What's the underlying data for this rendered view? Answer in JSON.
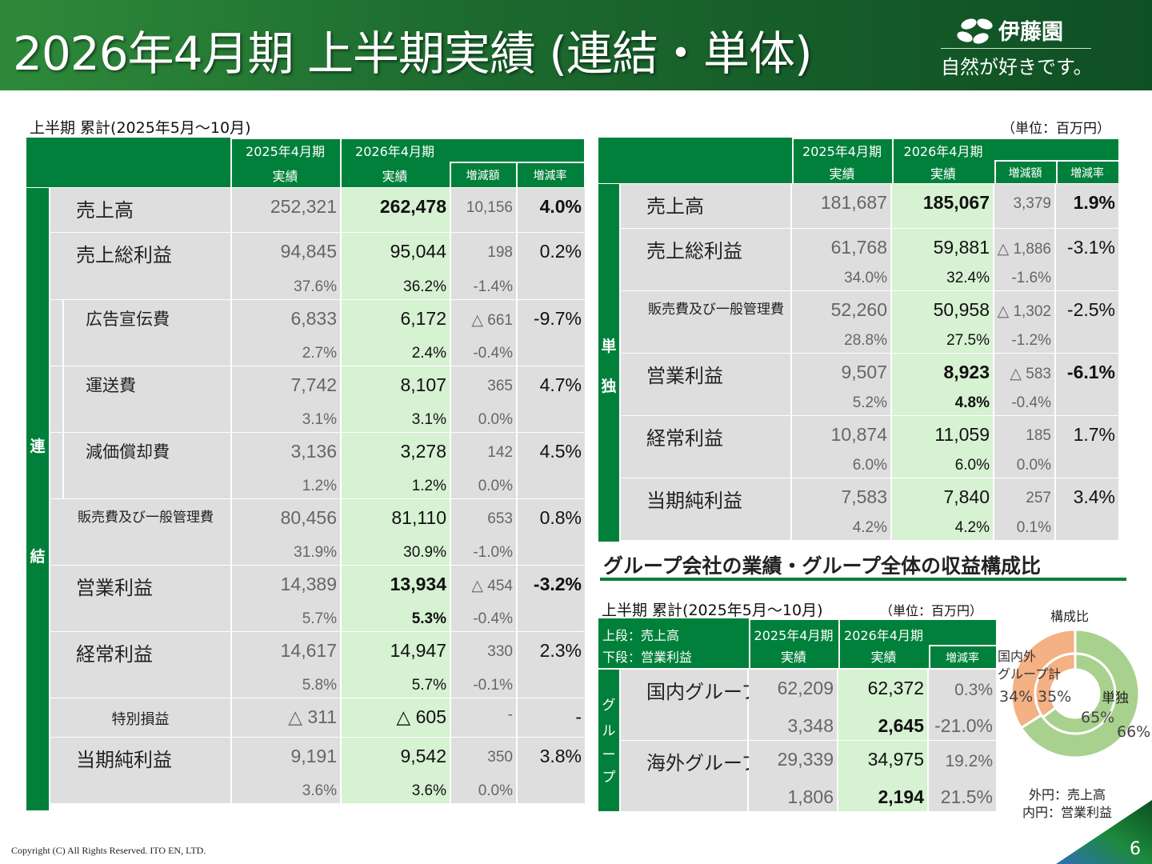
{
  "header": {
    "title": "2026年4月期 上半期実績 (連結・単体)",
    "logo_name": "伊藤園",
    "slogan": "自然が好きです。"
  },
  "unit_label": "（単位：百万円）",
  "consolidated": {
    "caption": "上半期 累計(2025年5月～10月)",
    "col_prev": "2025年4月期",
    "col_curr": "2026年4月期",
    "actual": "実績",
    "diff": "増減額",
    "rate": "増減率",
    "side_chars": [
      "連",
      "結"
    ],
    "rows": [
      {
        "label": "売上高",
        "prev": "252,321",
        "curr": "262,478",
        "diff": "10,156",
        "rate": "4.0%",
        "bold": true,
        "size": "big"
      },
      {
        "label": "売上総利益",
        "prev": "94,845",
        "curr": "95,044",
        "diff": "198",
        "rate": "0.2%",
        "pprev": "37.6%",
        "pcurr": "36.2%",
        "pdiff": "-1.4%",
        "size": "big"
      },
      {
        "label": "広告宣伝費",
        "prev": "6,833",
        "curr": "6,172",
        "diff": "△ 661",
        "rate": "-9.7%",
        "pprev": "2.7%",
        "pcurr": "2.4%",
        "pdiff": "-0.4%",
        "size": "sub"
      },
      {
        "label": "運送費",
        "prev": "7,742",
        "curr": "8,107",
        "diff": "365",
        "rate": "4.7%",
        "pprev": "3.1%",
        "pcurr": "3.1%",
        "pdiff": "0.0%",
        "size": "sub"
      },
      {
        "label": "減価償却費",
        "prev": "3,136",
        "curr": "3,278",
        "diff": "142",
        "rate": "4.5%",
        "pprev": "1.2%",
        "pcurr": "1.2%",
        "pdiff": "0.0%",
        "size": "sub"
      },
      {
        "label": "販売費及び一般管理費",
        "prev": "80,456",
        "curr": "81,110",
        "diff": "653",
        "rate": "0.8%",
        "pprev": "31.9%",
        "pcurr": "30.9%",
        "pdiff": "-1.0%",
        "size": "small"
      },
      {
        "label": "営業利益",
        "prev": "14,389",
        "curr": "13,934",
        "diff": "△ 454",
        "rate": "-3.2%",
        "pprev": "5.7%",
        "pcurr": "5.3%",
        "pdiff": "-0.4%",
        "bold": true,
        "size": "big"
      },
      {
        "label": "経常利益",
        "prev": "14,617",
        "curr": "14,947",
        "diff": "330",
        "rate": "2.3%",
        "pprev": "5.8%",
        "pcurr": "5.7%",
        "pdiff": "-0.1%",
        "size": "big"
      },
      {
        "label": "特別損益",
        "prev": "△ 311",
        "curr": "△ 605",
        "diff": "-",
        "rate": "-",
        "size": "center"
      },
      {
        "label": "当期純利益",
        "prev": "9,191",
        "curr": "9,542",
        "diff": "350",
        "rate": "3.8%",
        "pprev": "3.6%",
        "pcurr": "3.6%",
        "pdiff": "0.0%",
        "size": "big"
      }
    ]
  },
  "standalone": {
    "col_prev": "2025年4月期",
    "col_curr": "2026年4月期",
    "actual": "実績",
    "diff": "増減額",
    "rate": "増減率",
    "side_chars": [
      "単",
      "独"
    ],
    "rows": [
      {
        "label": "売上高",
        "prev": "181,687",
        "curr": "185,067",
        "diff": "3,379",
        "rate": "1.9%",
        "bold": true,
        "size": "big"
      },
      {
        "label": "売上総利益",
        "prev": "61,768",
        "curr": "59,881",
        "diff": "△ 1,886",
        "rate": "-3.1%",
        "pprev": "34.0%",
        "pcurr": "32.4%",
        "pdiff": "-1.6%",
        "size": "big"
      },
      {
        "label": "販売費及び一般管理費",
        "prev": "52,260",
        "curr": "50,958",
        "diff": "△ 1,302",
        "rate": "-2.5%",
        "pprev": "28.8%",
        "pcurr": "27.5%",
        "pdiff": "-1.2%",
        "size": "small"
      },
      {
        "label": "営業利益",
        "prev": "9,507",
        "curr": "8,923",
        "diff": "△ 583",
        "rate": "-6.1%",
        "pprev": "5.2%",
        "pcurr": "4.8%",
        "pdiff": "-0.4%",
        "bold": true,
        "size": "big"
      },
      {
        "label": "経常利益",
        "prev": "10,874",
        "curr": "11,059",
        "diff": "185",
        "rate": "1.7%",
        "pprev": "6.0%",
        "pcurr": "6.0%",
        "pdiff": "0.0%",
        "size": "big"
      },
      {
        "label": "当期純利益",
        "prev": "7,583",
        "curr": "7,840",
        "diff": "257",
        "rate": "3.4%",
        "pprev": "4.2%",
        "pcurr": "4.2%",
        "pdiff": "0.1%",
        "size": "big"
      }
    ]
  },
  "group": {
    "section_title": "グループ会社の業績・グループ全体の収益構成比",
    "caption": "上半期 累計(2025年5月～10月)",
    "unit_label": "（単位：百万円）",
    "legend_top": "上段：売上高",
    "legend_bottom": "下段：営業利益",
    "col_prev": "2025年4月期",
    "col_curr": "2026年4月期",
    "actual": "実績",
    "rate": "増減率",
    "side_chars": [
      "グ",
      "ル",
      "ー",
      "プ"
    ],
    "rows": [
      {
        "label": "国内グループ",
        "prev": "62,209",
        "curr": "62,372",
        "rate": "0.3%",
        "pprev": "3,348",
        "pcurr": "2,645",
        "prate": "-21.0%"
      },
      {
        "label": "海外グループ",
        "prev": "29,339",
        "curr": "34,975",
        "rate": "19.2%",
        "pprev": "1,806",
        "pcurr": "2,194",
        "prate": "21.5%"
      }
    ]
  },
  "composition": {
    "title": "構成比",
    "group_label": "国内外\nグループ計",
    "standalone_label": "単独",
    "outer_note": "外円：売上高",
    "inner_note": "内円：営業利益",
    "outer": {
      "standalone": 66,
      "group": 34,
      "standalone_text": "66%",
      "group_text": "34%"
    },
    "inner": {
      "standalone": 65,
      "group": 35,
      "standalone_text": "65%",
      "group_text": "35%"
    },
    "colors": {
      "standalone": "#a9d18e",
      "group": "#f4b183"
    }
  },
  "footer": {
    "copyright": "Copyright (C) All Rights Reserved. ITO EN, LTD.",
    "page": "6"
  },
  "colors": {
    "header_green": "#00803a",
    "cell_gray": "#dedede",
    "cell_green": "#d7f1d3"
  }
}
